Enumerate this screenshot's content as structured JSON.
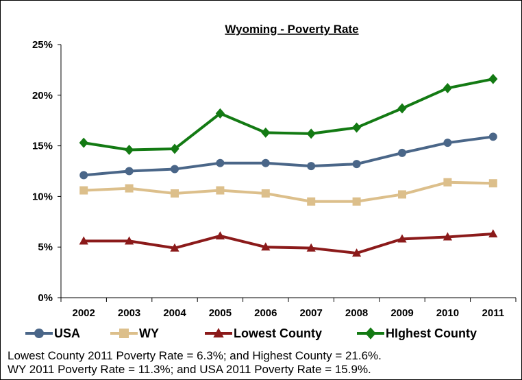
{
  "chart_data": {
    "type": "line",
    "title": "Wyoming - Poverty Rate",
    "xlabel": "",
    "ylabel": "",
    "categories": [
      "2002",
      "2003",
      "2004",
      "2005",
      "2006",
      "2007",
      "2008",
      "2009",
      "2010",
      "2011"
    ],
    "y_ticks": [
      "0%",
      "5%",
      "10%",
      "15%",
      "20%",
      "25%"
    ],
    "ylim": [
      0,
      25
    ],
    "grid": false,
    "legend_position": "bottom",
    "series": [
      {
        "name": "USA",
        "color": "#4a6688",
        "marker": "circle",
        "values": [
          12.1,
          12.5,
          12.7,
          13.3,
          13.3,
          13.0,
          13.2,
          14.3,
          15.3,
          15.9
        ]
      },
      {
        "name": "WY",
        "color": "#dcbf8b",
        "marker": "square",
        "values": [
          10.6,
          10.8,
          10.3,
          10.6,
          10.3,
          9.5,
          9.5,
          10.2,
          11.4,
          11.3
        ]
      },
      {
        "name": "Lowest County",
        "color": "#8b1a1a",
        "marker": "triangle",
        "values": [
          5.6,
          5.6,
          4.9,
          6.1,
          5.0,
          4.9,
          4.4,
          5.8,
          6.0,
          6.3
        ]
      },
      {
        "name": "HIghest County",
        "color": "#137a13",
        "marker": "diamond",
        "values": [
          15.3,
          14.6,
          14.7,
          18.2,
          16.3,
          16.2,
          16.8,
          18.7,
          20.7,
          21.6
        ]
      }
    ]
  },
  "footnote": {
    "line1": "Lowest County 2011 Poverty Rate = 6.3%; and Highest County = 21.6%.",
    "line2": "WY 2011 Poverty Rate = 11.3%; and USA 2011 Poverty Rate = 15.9%."
  }
}
